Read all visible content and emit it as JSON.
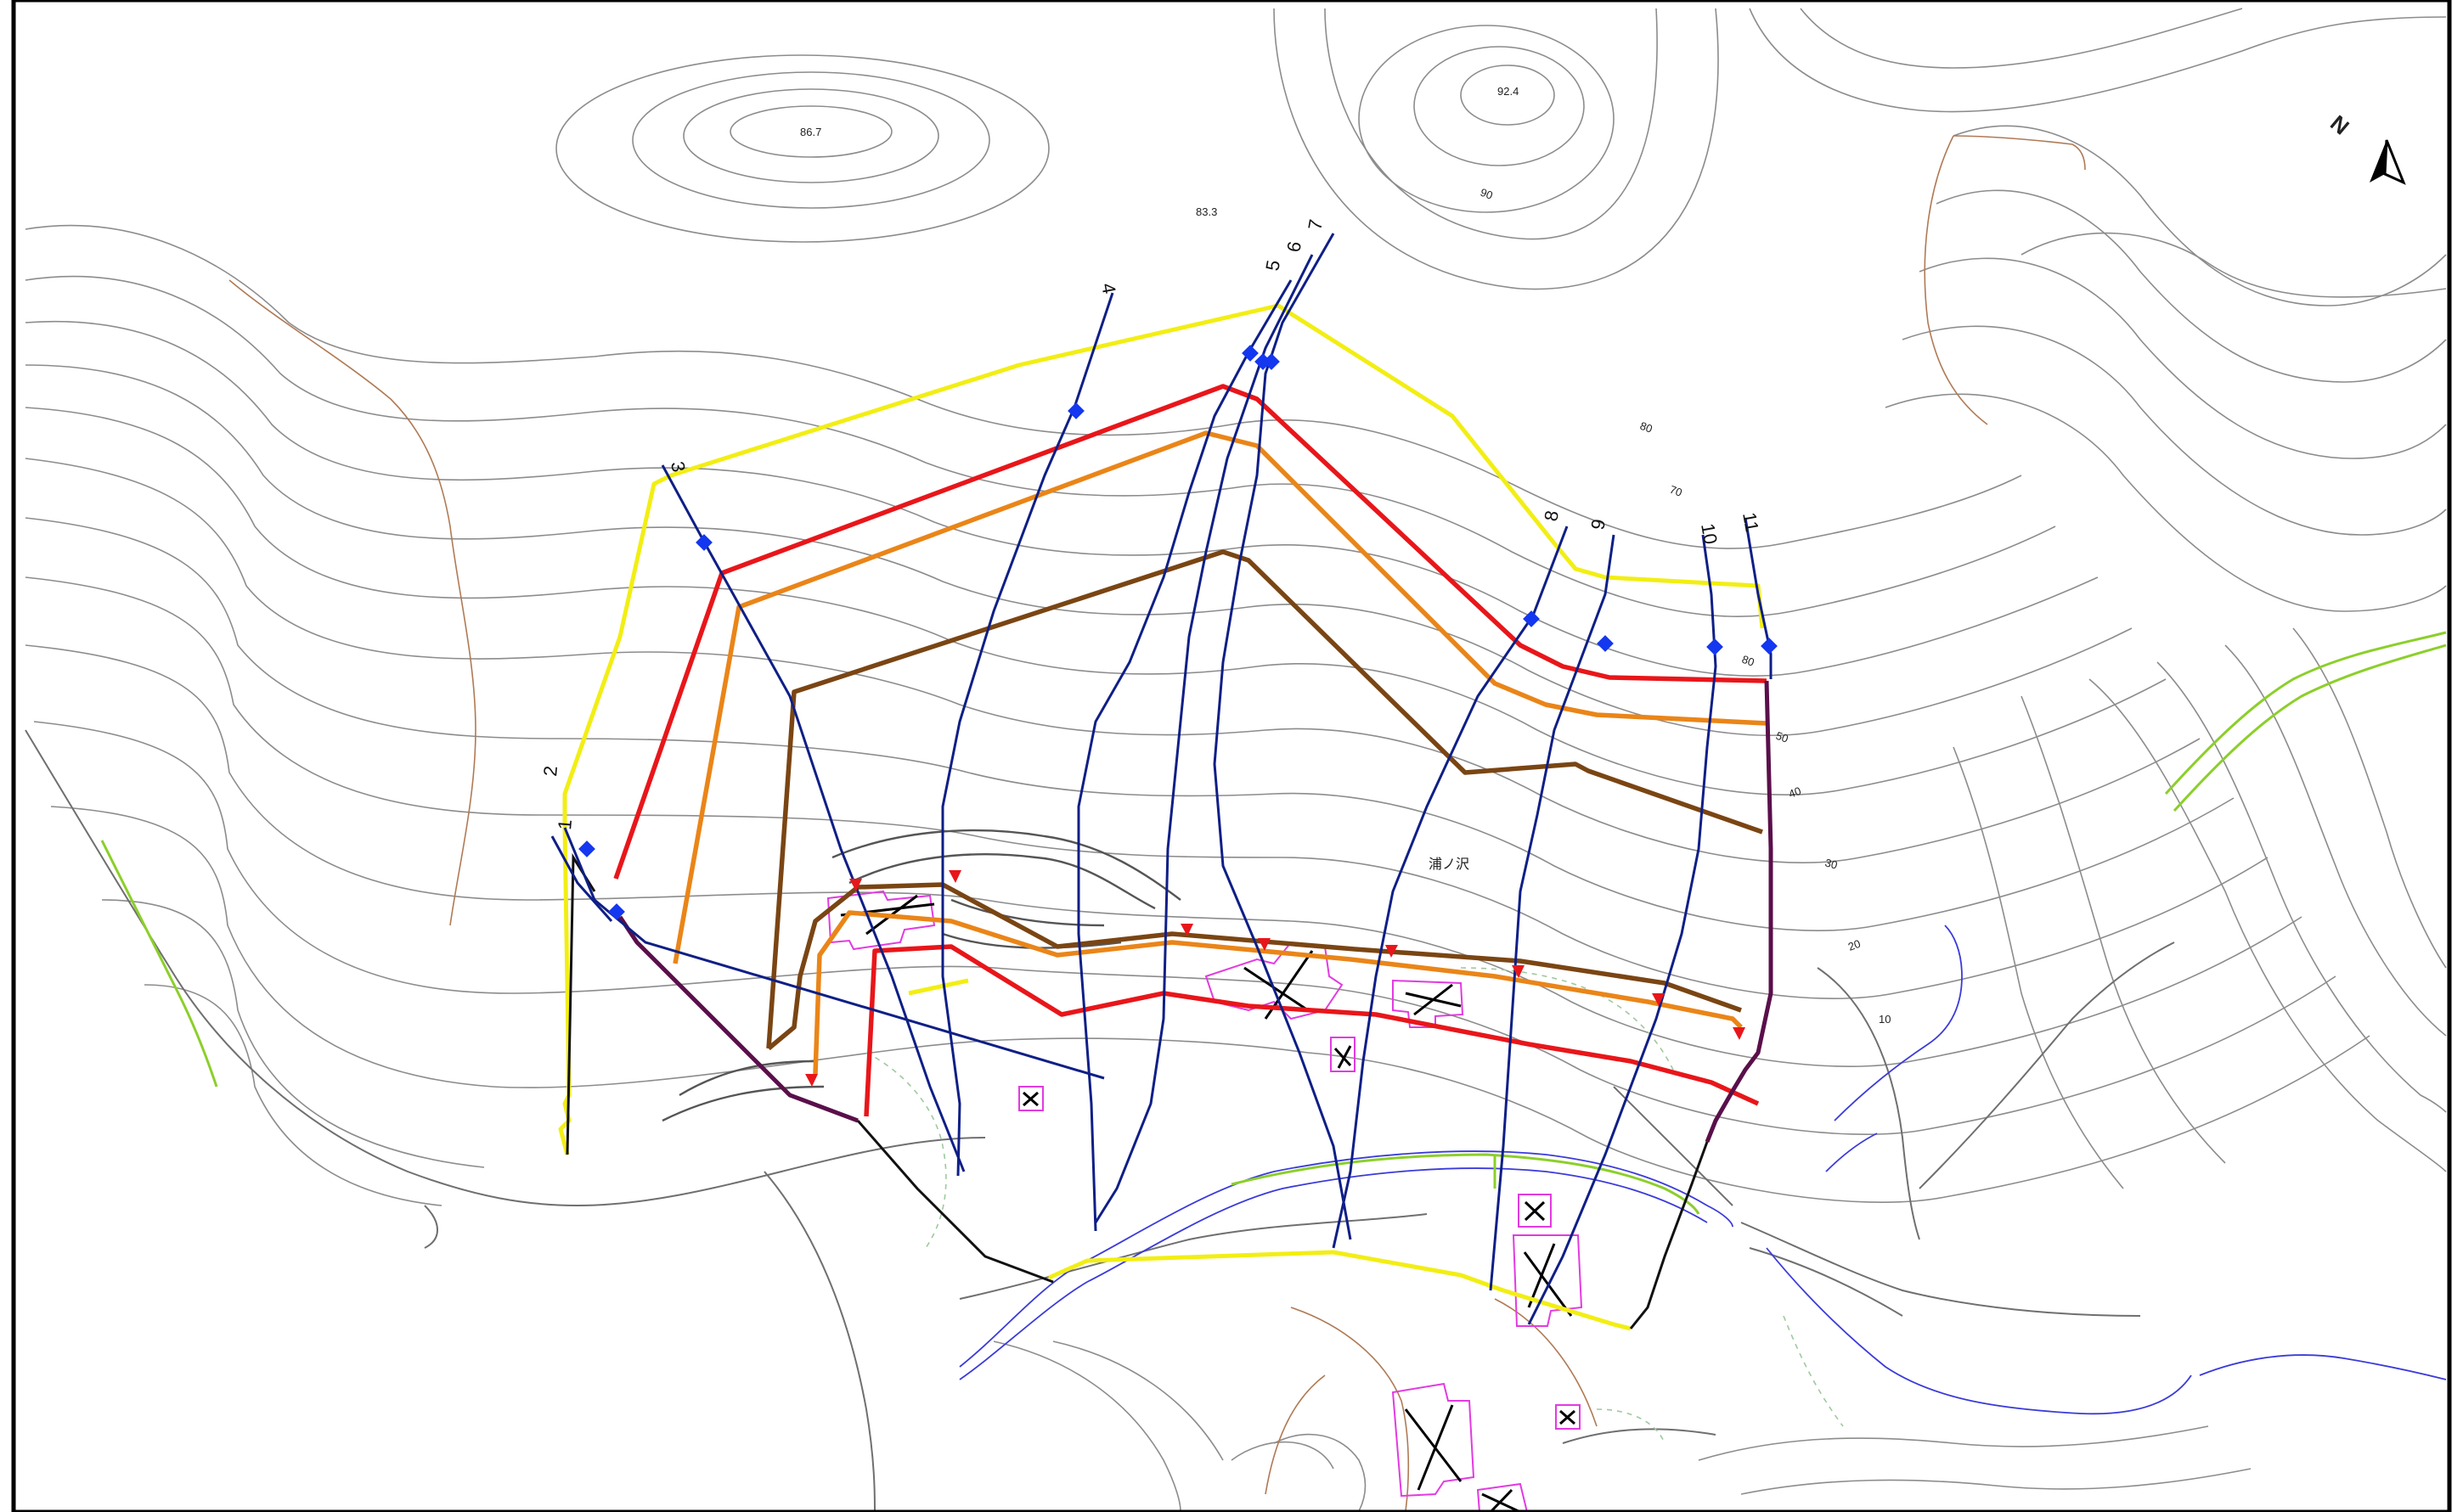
{
  "map": {
    "elevation_labels": {
      "peak_west": "86.7",
      "peak_east": "92.4",
      "saddle": "83.3",
      "c90": "90",
      "c80a": "80",
      "c70": "70",
      "c80b": "80",
      "c50": "50",
      "c40": "40",
      "c30": "30",
      "c20": "20",
      "c10": "10"
    },
    "place_name": "浦ノ沢",
    "north_arrow_label": "N",
    "flow_line_numbers": [
      "1",
      "2",
      "3",
      "4",
      "5",
      "6",
      "7",
      "8",
      "9",
      "10",
      "11"
    ],
    "colors": {
      "yellow_zone": "#f2ee14",
      "red_zone": "#e8161a",
      "orange_zone": "#ea8518",
      "brown_zone": "#7a4513",
      "flow_lines": "#0f1f86",
      "buildings": "#e23be0",
      "river": "#3b3bd9"
    }
  }
}
